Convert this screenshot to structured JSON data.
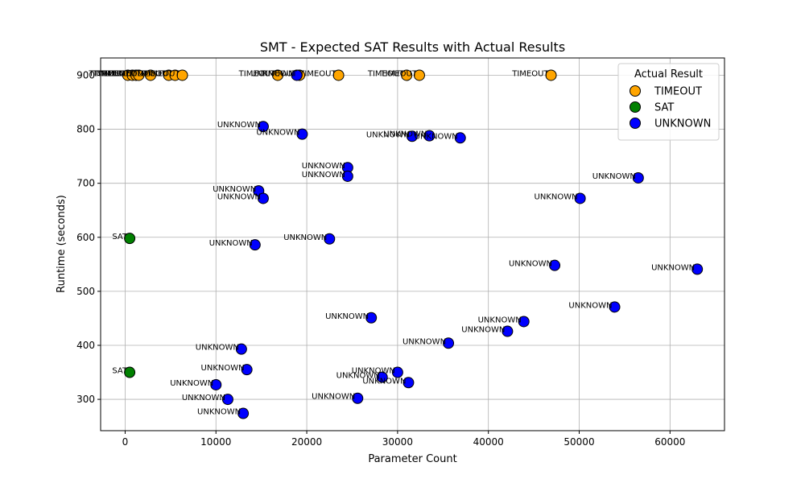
{
  "chart_data": {
    "type": "scatter",
    "title": "SMT - Expected SAT Results with Actual Results",
    "xlabel": "Parameter Count",
    "ylabel": "Runtime (seconds)",
    "xlim": [
      -2700,
      66000
    ],
    "ylim": [
      242,
      932
    ],
    "xticks": [
      0,
      10000,
      20000,
      30000,
      40000,
      50000,
      60000
    ],
    "yticks": [
      300,
      400,
      500,
      600,
      700,
      800,
      900
    ],
    "grid": true,
    "legend": {
      "title": "Actual Result",
      "placement": "top-right"
    },
    "series": [
      {
        "name": "TIMEOUT",
        "color": "#ffa500",
        "points": [
          {
            "x": 300,
            "y": 900,
            "label": "TIMEOUT"
          },
          {
            "x": 800,
            "y": 900,
            "label": "TIMEOUT"
          },
          {
            "x": 1200,
            "y": 900,
            "label": "TIMEOUT"
          },
          {
            "x": 1500,
            "y": 900,
            "label": "TIMEOUT"
          },
          {
            "x": 2800,
            "y": 900,
            "label": "TIMEOUT"
          },
          {
            "x": 4800,
            "y": 900,
            "label": "TIMEOUT"
          },
          {
            "x": 5500,
            "y": 900,
            "label": "TIMEOUT"
          },
          {
            "x": 6300,
            "y": 900,
            "label": "TIMEOUT"
          },
          {
            "x": 16800,
            "y": 900,
            "label": "TIMEOUT"
          },
          {
            "x": 19200,
            "y": 900,
            "label": "TIMEOUT"
          },
          {
            "x": 23500,
            "y": 900,
            "label": "TIMEOUT"
          },
          {
            "x": 31000,
            "y": 900,
            "label": "TIMEOUT"
          },
          {
            "x": 32400,
            "y": 900,
            "label": "TIMEOUT"
          },
          {
            "x": 46900,
            "y": 900,
            "label": "TIMEOUT"
          }
        ]
      },
      {
        "name": "SAT",
        "color": "#008000",
        "points": [
          {
            "x": 500,
            "y": 598,
            "label": "SAT"
          },
          {
            "x": 500,
            "y": 350,
            "label": "SAT"
          }
        ]
      },
      {
        "name": "UNKNOWN",
        "color": "#0000ff",
        "points": [
          {
            "x": 18900,
            "y": 900,
            "label": "UNKNOWN"
          },
          {
            "x": 15200,
            "y": 805,
            "label": "UNKNOWN"
          },
          {
            "x": 19500,
            "y": 791,
            "label": "UNKNOWN"
          },
          {
            "x": 31600,
            "y": 787,
            "label": "UNKNOWN"
          },
          {
            "x": 33500,
            "y": 788,
            "label": "UNKNOWN"
          },
          {
            "x": 36900,
            "y": 784,
            "label": "UNKNOWN"
          },
          {
            "x": 24500,
            "y": 729,
            "label": "UNKNOWN"
          },
          {
            "x": 24500,
            "y": 713,
            "label": "UNKNOWN"
          },
          {
            "x": 14700,
            "y": 686,
            "label": "UNKNOWN"
          },
          {
            "x": 15200,
            "y": 672,
            "label": "UNKNOWN"
          },
          {
            "x": 56500,
            "y": 710,
            "label": "UNKNOWN"
          },
          {
            "x": 50100,
            "y": 672,
            "label": "UNKNOWN"
          },
          {
            "x": 14300,
            "y": 586,
            "label": "UNKNOWN"
          },
          {
            "x": 22500,
            "y": 597,
            "label": "UNKNOWN"
          },
          {
            "x": 47300,
            "y": 548,
            "label": "UNKNOWN"
          },
          {
            "x": 63000,
            "y": 541,
            "label": "UNKNOWN"
          },
          {
            "x": 27100,
            "y": 451,
            "label": "UNKNOWN"
          },
          {
            "x": 53900,
            "y": 471,
            "label": "UNKNOWN"
          },
          {
            "x": 43900,
            "y": 444,
            "label": "UNKNOWN"
          },
          {
            "x": 42100,
            "y": 426,
            "label": "UNKNOWN"
          },
          {
            "x": 35600,
            "y": 404,
            "label": "UNKNOWN"
          },
          {
            "x": 12800,
            "y": 393,
            "label": "UNKNOWN"
          },
          {
            "x": 13400,
            "y": 355,
            "label": "UNKNOWN"
          },
          {
            "x": 30000,
            "y": 350,
            "label": "UNKNOWN"
          },
          {
            "x": 28300,
            "y": 341,
            "label": "UNKNOWN"
          },
          {
            "x": 31200,
            "y": 331,
            "label": "UNKNOWN"
          },
          {
            "x": 10000,
            "y": 327,
            "label": "UNKNOWN"
          },
          {
            "x": 11300,
            "y": 300,
            "label": "UNKNOWN"
          },
          {
            "x": 25600,
            "y": 302,
            "label": "UNKNOWN"
          },
          {
            "x": 13000,
            "y": 274,
            "label": "UNKNOWN"
          }
        ]
      }
    ]
  }
}
